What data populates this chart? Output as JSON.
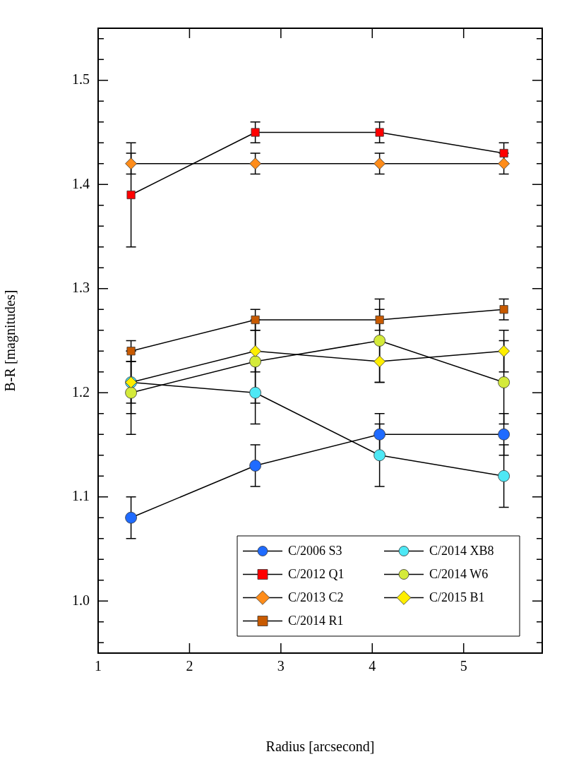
{
  "chart_data": {
    "type": "line",
    "xlabel": "Radius [arcsecond]",
    "ylabel": "B-R [magnitudes]",
    "x": [
      1.36,
      2.72,
      4.08,
      5.44
    ],
    "xlim": [
      1,
      5.86
    ],
    "xticks": [
      1,
      2,
      3,
      4,
      5
    ],
    "ylim": [
      0.95,
      1.55
    ],
    "yticks": [
      {
        "value": 1.0,
        "label": "1.0"
      },
      1.1,
      1.2,
      1.3,
      1.4,
      1.5,
      {
        "value": 0.96,
        "label": null
      },
      {
        "value": 0.98,
        "label": null
      },
      {
        "value": 1.02,
        "label": null
      },
      {
        "value": 1.04,
        "label": null
      },
      {
        "value": 1.06,
        "label": null
      },
      {
        "value": 1.08,
        "label": null
      },
      {
        "value": 1.12,
        "label": null
      },
      {
        "value": 1.14,
        "label": null
      },
      {
        "value": 1.16,
        "label": null
      },
      {
        "value": 1.18,
        "label": null
      },
      {
        "value": 1.22,
        "label": null
      },
      {
        "value": 1.24,
        "label": null
      },
      {
        "value": 1.26,
        "label": null
      },
      {
        "value": 1.28,
        "label": null
      },
      {
        "value": 1.32,
        "label": null
      },
      {
        "value": 1.34,
        "label": null
      },
      {
        "value": 1.36,
        "label": null
      },
      {
        "value": 1.38,
        "label": null
      },
      {
        "value": 1.42,
        "label": null
      },
      {
        "value": 1.44,
        "label": null
      },
      {
        "value": 1.46,
        "label": null
      },
      {
        "value": 1.48,
        "label": null
      },
      {
        "value": 1.52,
        "label": null
      },
      {
        "value": 1.54,
        "label": null
      }
    ],
    "grid": false,
    "legend": "bottom right",
    "line_style": "solid",
    "series": [
      {
        "name": "C/2006 S3",
        "color": "#1f6bff",
        "marker": "circle",
        "values": [
          1.08,
          1.13,
          1.16,
          1.16
        ],
        "errors": [
          0.02,
          0.02,
          0.02,
          0.02
        ]
      },
      {
        "name": "C/2012 Q1",
        "color": "#ff0000",
        "marker": "square",
        "values": [
          1.39,
          1.45,
          1.45,
          1.43
        ],
        "errors": [
          0.05,
          0.01,
          0.01,
          0.01
        ]
      },
      {
        "name": "C/2013 C2",
        "color": "#ff8c1a",
        "marker": "diamond",
        "values": [
          1.42,
          1.42,
          1.42,
          1.42
        ],
        "errors": [
          0.01,
          0.01,
          0.01,
          0.01
        ]
      },
      {
        "name": "C/2014 R1",
        "color": "#c85a00",
        "marker": "square",
        "values": [
          1.24,
          1.27,
          1.27,
          1.28
        ],
        "errors": [
          0.01,
          0.01,
          0.01,
          0.01
        ]
      },
      {
        "name": "C/2014 XB8",
        "color": "#4ee8f5",
        "marker": "circle",
        "values": [
          1.21,
          1.2,
          1.14,
          1.12
        ],
        "errors": [
          0.03,
          0.03,
          0.03,
          0.03
        ]
      },
      {
        "name": "C/2014 W6",
        "color": "#d4ea3a",
        "marker": "circle",
        "values": [
          1.2,
          1.23,
          1.25,
          1.21
        ],
        "errors": [
          0.04,
          0.04,
          0.04,
          0.04
        ]
      },
      {
        "name": "C/2015 B1",
        "color": "#ffee00",
        "marker": "diamond",
        "values": [
          1.21,
          1.24,
          1.23,
          1.24
        ],
        "errors": [
          0.02,
          0.02,
          0.02,
          0.02
        ]
      }
    ]
  }
}
